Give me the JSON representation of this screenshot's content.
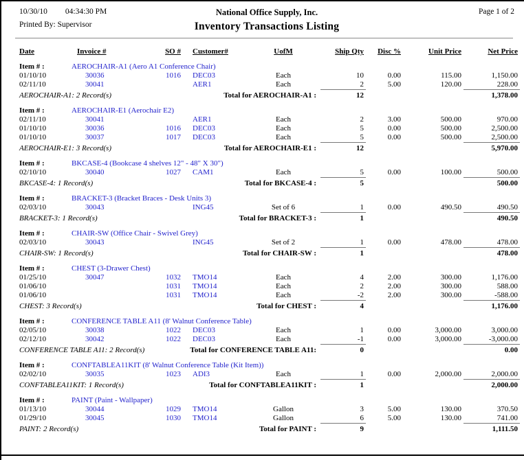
{
  "page": {
    "date": "10/30/10",
    "time": "04:34:30 PM",
    "company": "National Office Supply, Inc.",
    "page_label": "Page 1 of 2",
    "printed_by": "Printed By: Supervisor",
    "title": "Inventory Transactions Listing"
  },
  "item_label": "Item # :",
  "columns": [
    "Date",
    "Invoice #",
    "SO #",
    "Customer#",
    "UofM",
    "Ship Qty",
    "Disc %",
    "Unit Price",
    "Net Price"
  ],
  "accent_color": "#2222cc",
  "sections": [
    {
      "item": "AEROCHAIR-A1 (Aero A1 Conference Chair)",
      "rows": [
        [
          "01/10/10",
          "30036",
          "1016",
          "DEC03",
          "Each",
          "10",
          "0.00",
          "115.00",
          "1,150.00"
        ],
        [
          "02/11/10",
          "30041",
          "",
          "AER1",
          "Each",
          "2",
          "5.00",
          "120.00",
          "228.00"
        ]
      ],
      "records": "AEROCHAIR-A1: 2 Record(s)",
      "total_label": "Total for AEROCHAIR-A1 :",
      "total_qty": "12",
      "total_net": "1,378.00"
    },
    {
      "item": "AEROCHAIR-E1 (Aerochair E2)",
      "rows": [
        [
          "02/11/10",
          "30041",
          "",
          "AER1",
          "Each",
          "2",
          "3.00",
          "500.00",
          "970.00"
        ],
        [
          "01/10/10",
          "30036",
          "1016",
          "DEC03",
          "Each",
          "5",
          "0.00",
          "500.00",
          "2,500.00"
        ],
        [
          "01/10/10",
          "30037",
          "1017",
          "DEC03",
          "Each",
          "5",
          "0.00",
          "500.00",
          "2,500.00"
        ]
      ],
      "records": "AEROCHAIR-E1: 3 Record(s)",
      "total_label": "Total for AEROCHAIR-E1 :",
      "total_qty": "12",
      "total_net": "5,970.00"
    },
    {
      "item": "BKCASE-4 (Bookcase 4 shelves 12\" - 48\" X 30\")",
      "rows": [
        [
          "02/10/10",
          "30040",
          "1027",
          "CAM1",
          "Each",
          "5",
          "0.00",
          "100.00",
          "500.00"
        ]
      ],
      "records": "BKCASE-4: 1 Record(s)",
      "total_label": "Total for BKCASE-4 :",
      "total_qty": "5",
      "total_net": "500.00"
    },
    {
      "item": "BRACKET-3 (Bracket Braces - Desk Units 3)",
      "rows": [
        [
          "02/03/10",
          "30043",
          "",
          "ING45",
          "Set of 6",
          "1",
          "0.00",
          "490.50",
          "490.50"
        ]
      ],
      "records": "BRACKET-3: 1 Record(s)",
      "total_label": "Total for BRACKET-3 :",
      "total_qty": "1",
      "total_net": "490.50"
    },
    {
      "item": "CHAIR-SW (Office Chair - Swivel Grey)",
      "rows": [
        [
          "02/03/10",
          "30043",
          "",
          "ING45",
          "Set of 2",
          "1",
          "0.00",
          "478.00",
          "478.00"
        ]
      ],
      "records": "CHAIR-SW: 1 Record(s)",
      "total_label": "Total for CHAIR-SW :",
      "total_qty": "1",
      "total_net": "478.00"
    },
    {
      "item": "CHEST (3-Drawer Chest)",
      "rows": [
        [
          "01/25/10",
          "30047",
          "1032",
          "TMO14",
          "Each",
          "4",
          "2.00",
          "300.00",
          "1,176.00"
        ],
        [
          "01/06/10",
          "",
          "1031",
          "TMO14",
          "Each",
          "2",
          "2.00",
          "300.00",
          "588.00"
        ],
        [
          "01/06/10",
          "",
          "1031",
          "TMO14",
          "Each",
          "-2",
          "2.00",
          "300.00",
          "-588.00"
        ]
      ],
      "records": "CHEST: 3 Record(s)",
      "total_label": "Total for CHEST :",
      "total_qty": "4",
      "total_net": "1,176.00"
    },
    {
      "item": "CONFERENCE TABLE A11 (8' Walnut Conference Table)",
      "rows": [
        [
          "02/05/10",
          "30038",
          "1022",
          "DEC03",
          "Each",
          "1",
          "0.00",
          "3,000.00",
          "3,000.00"
        ],
        [
          "02/12/10",
          "30042",
          "1022",
          "DEC03",
          "Each",
          "-1",
          "0.00",
          "3,000.00",
          "-3,000.00"
        ]
      ],
      "records": "CONFERENCE TABLE A11: 2 Record(s)",
      "total_label": "Total for CONFERENCE TABLE A11:",
      "total_qty": "0",
      "total_net": "0.00"
    },
    {
      "item": "CONFTABLEA11KIT (8' Walnut Conference Table (Kit Item))",
      "rows": [
        [
          "02/02/10",
          "30035",
          "1023",
          "ADI3",
          "Each",
          "1",
          "0.00",
          "2,000.00",
          "2,000.00"
        ]
      ],
      "records": "CONFTABLEA11KIT: 1 Record(s)",
      "total_label": "Total for CONFTABLEA11KIT :",
      "total_qty": "1",
      "total_net": "2,000.00"
    },
    {
      "item": "PAINT (Paint - Wallpaper)",
      "rows": [
        [
          "01/13/10",
          "30044",
          "1029",
          "TMO14",
          "Gallon",
          "3",
          "5.00",
          "130.00",
          "370.50"
        ],
        [
          "01/29/10",
          "30045",
          "1030",
          "TMO14",
          "Gallon",
          "6",
          "5.00",
          "130.00",
          "741.00"
        ]
      ],
      "records": "PAINT: 2 Record(s)",
      "total_label": "Total for PAINT :",
      "total_qty": "9",
      "total_net": "1,111.50"
    }
  ]
}
